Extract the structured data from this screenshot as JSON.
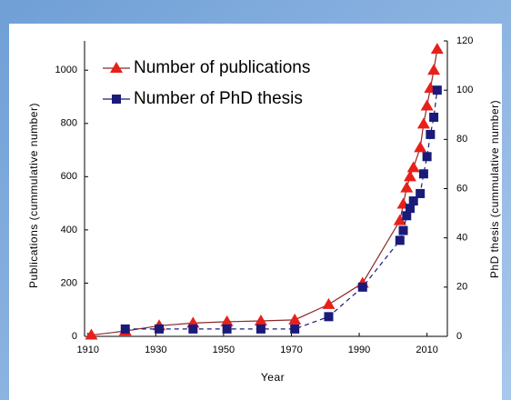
{
  "chart_data": {
    "type": "line",
    "xlabel": "Year",
    "ylabel": "Publications (cummulative number)",
    "y2label": "PhD thesis (cummulative number)",
    "xlim": [
      1909,
      2016
    ],
    "xticks": [
      1910,
      1930,
      1950,
      1970,
      1990,
      2010
    ],
    "ylim": [
      0,
      1110
    ],
    "yticks": [
      0,
      200,
      400,
      600,
      800,
      1000
    ],
    "y2lim": [
      0,
      120
    ],
    "y2ticks": [
      0,
      20,
      40,
      60,
      80,
      100,
      120
    ],
    "legend": "upper left",
    "series": [
      {
        "name": "Number of publications",
        "color": "#e8201a",
        "marker": "triangle",
        "linestyle": "solid",
        "line_color": "#8b2a2a",
        "x": [
          1911,
          1921,
          1931,
          1941,
          1951,
          1961,
          1971,
          1981,
          1991,
          2002,
          2003,
          2004,
          2005,
          2006,
          2008,
          2009,
          2010,
          2011,
          2012,
          2013
        ],
        "values": [
          5,
          20,
          40,
          50,
          55,
          58,
          62,
          120,
          200,
          435,
          497,
          558,
          600,
          634,
          709,
          798,
          866,
          932,
          1000,
          1079
        ]
      },
      {
        "name": "Number of PhD thesis",
        "color": "#1a1a7a",
        "marker": "square",
        "linestyle": "dashed",
        "line_color": "#1a1a7a",
        "axis": "y2",
        "x": [
          1921,
          1931,
          1941,
          1951,
          1961,
          1971,
          1981,
          1991,
          2002,
          2003,
          2004,
          2005,
          2006,
          2008,
          2009,
          2010,
          2011,
          2012,
          2013
        ],
        "values": [
          3,
          3,
          3,
          3,
          3,
          3,
          8,
          20,
          39,
          43,
          49,
          52,
          55,
          58,
          66,
          73,
          82,
          89,
          100
        ]
      }
    ]
  }
}
